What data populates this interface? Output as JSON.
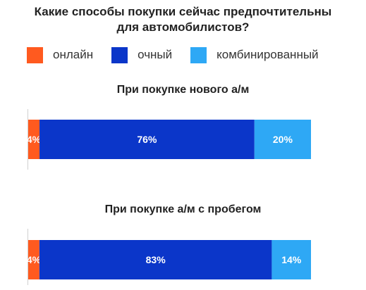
{
  "title_line1": "Какие способы покупки сейчас предпочтительны",
  "title_line2": "для автомобилистов?",
  "legend": [
    {
      "label": "онлайн",
      "color": "#ff5a1f"
    },
    {
      "label": "очный",
      "color": "#0b36c9"
    },
    {
      "label": "комбинированный",
      "color": "#2ea8f5"
    }
  ],
  "chart_data": {
    "type": "bar",
    "orientation": "horizontal",
    "stacked": true,
    "unit": "%",
    "categories": [
      "При покупке нового а/м",
      "При покупке а/м с пробегом"
    ],
    "series": [
      {
        "name": "онлайн",
        "color": "#ff5a1f",
        "values": [
          4,
          4
        ]
      },
      {
        "name": "очный",
        "color": "#0b36c9",
        "values": [
          76,
          83
        ]
      },
      {
        "name": "комбинированный",
        "color": "#2ea8f5",
        "values": [
          20,
          14
        ]
      }
    ],
    "data_labels": [
      [
        "4%",
        "76%",
        "20%"
      ],
      [
        "4%",
        "83%",
        "14%"
      ]
    ],
    "legend_position": "top",
    "grid": false
  }
}
